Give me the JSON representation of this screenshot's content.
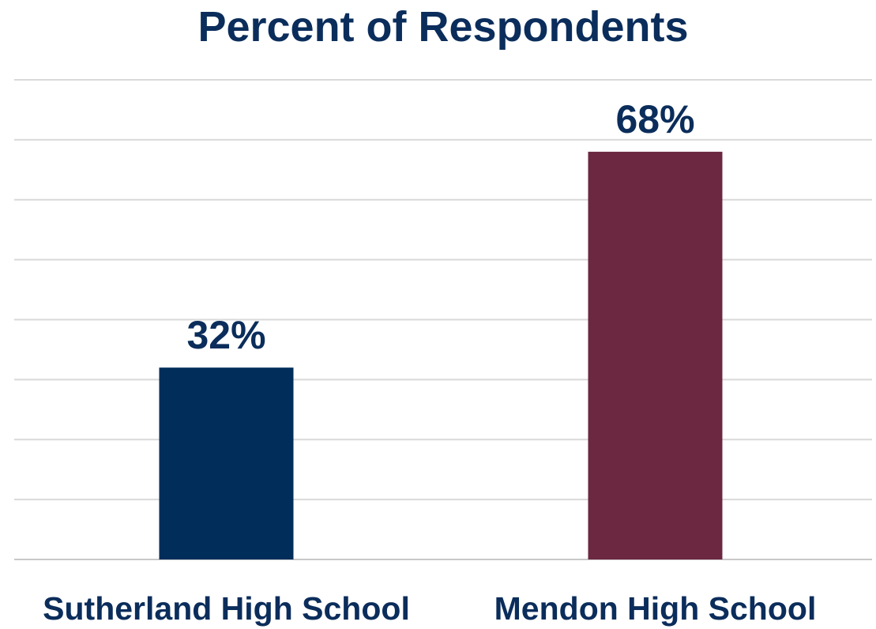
{
  "chart_data": {
    "type": "bar",
    "title": "Percent of Respondents",
    "categories": [
      "Sutherland High School",
      "Mendon High School"
    ],
    "values": [
      32,
      68
    ],
    "data_labels": [
      "32%",
      "68%"
    ],
    "bar_colors": [
      "#002d5a",
      "#6b2840"
    ],
    "text_color": "#0b2d5b",
    "ylim": [
      0,
      80
    ],
    "grid": true,
    "legend": "none"
  }
}
